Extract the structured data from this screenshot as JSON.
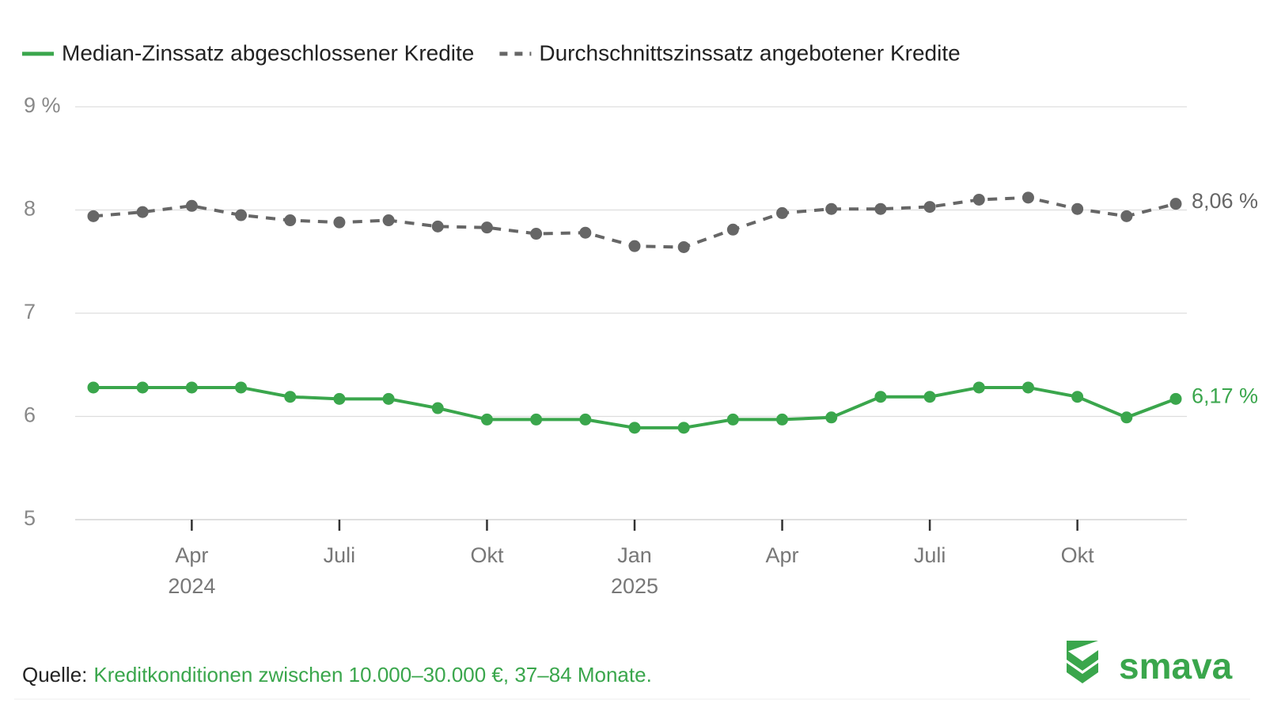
{
  "chart_data": {
    "type": "line",
    "categories": [
      null,
      null,
      "Apr",
      null,
      null,
      "Juli",
      null,
      null,
      "Okt",
      null,
      null,
      "Jan",
      null,
      null,
      "Apr",
      null,
      null,
      "Juli",
      null,
      null,
      "Okt",
      null,
      null
    ],
    "category_years": [
      null,
      null,
      "2024",
      null,
      null,
      null,
      null,
      null,
      null,
      null,
      null,
      "2025",
      null,
      null,
      null,
      null,
      null,
      null,
      null,
      null,
      null,
      null,
      null
    ],
    "series": [
      {
        "name": "Median-Zinssatz abgeschlossener Kredite",
        "color": "#3aa64c",
        "dash": false,
        "values": [
          6.28,
          6.28,
          6.28,
          6.28,
          6.19,
          6.17,
          6.17,
          6.08,
          5.97,
          5.97,
          5.97,
          5.89,
          5.89,
          5.97,
          5.97,
          5.99,
          6.19,
          6.19,
          6.28,
          6.28,
          6.19,
          5.99,
          6.17
        ],
        "value_labels": [
          null,
          null,
          null,
          null,
          null,
          null,
          null,
          null,
          null,
          null,
          null,
          null,
          null,
          null,
          null,
          null,
          null,
          null,
          null,
          null,
          null,
          null,
          "6,17 %"
        ]
      },
      {
        "name": "Durchschnittszinssatz angebotener Kredite",
        "color": "#666666",
        "dash": true,
        "values": [
          7.94,
          7.98,
          8.04,
          7.95,
          7.9,
          7.88,
          7.9,
          7.84,
          7.83,
          7.77,
          7.78,
          7.65,
          7.64,
          7.81,
          7.97,
          8.01,
          8.01,
          8.03,
          8.1,
          8.12,
          8.01,
          7.94,
          8.06
        ],
        "value_labels": [
          null,
          null,
          null,
          null,
          null,
          null,
          null,
          null,
          null,
          null,
          null,
          null,
          null,
          null,
          null,
          null,
          null,
          null,
          null,
          null,
          null,
          null,
          "8,06 %"
        ]
      }
    ],
    "ylim": [
      5,
      9
    ],
    "yticks": [
      5,
      6,
      7,
      8,
      {
        "value": 9,
        "label": "9 %"
      }
    ],
    "grid": true,
    "source_label": "Quelle:",
    "source_text": "Kreditkonditionen zwischen 10.000–30.000 €, 37–84 Monate.",
    "logo": "smava"
  }
}
